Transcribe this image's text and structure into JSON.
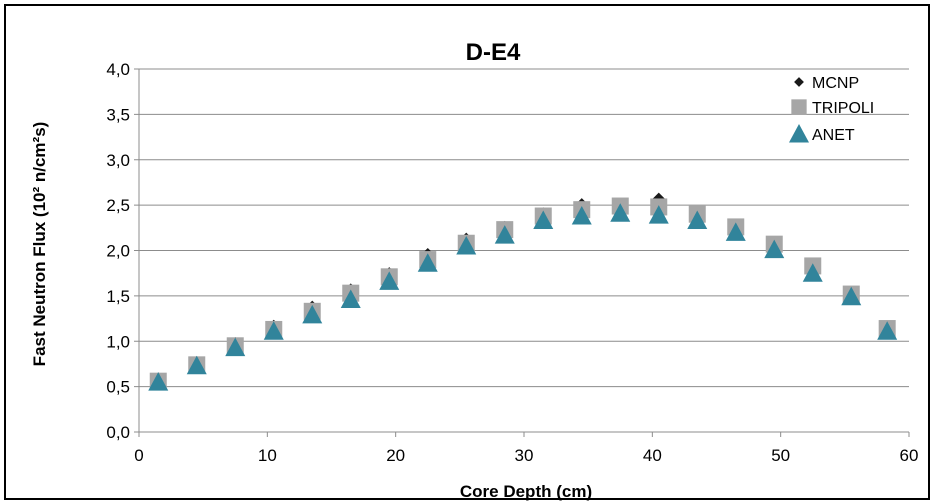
{
  "chart_data": {
    "type": "scatter",
    "title": "D-E4",
    "xlabel": "Core Depth (cm)",
    "ylabel": "Fast Neutron Flux (10² n/cm²s)",
    "xlim": [
      0,
      60
    ],
    "ylim": [
      0,
      4
    ],
    "x_ticks": [
      "0",
      "10",
      "20",
      "30",
      "40",
      "50",
      "60"
    ],
    "y_ticks": [
      "0,0",
      "0,5",
      "1,0",
      "1,5",
      "2,0",
      "2,5",
      "3,0",
      "3,5",
      "4,0"
    ],
    "grid": "horizontal",
    "legend_position": "top-right",
    "x": [
      1.5,
      4.5,
      7.5,
      10.5,
      13.5,
      16.5,
      19.5,
      22.5,
      25.5,
      28.5,
      31.5,
      34.5,
      37.5,
      40.5,
      43.5,
      46.5,
      49.5,
      52.5,
      55.5,
      58.3
    ],
    "series": [
      {
        "name": "MCNP",
        "marker": "diamond",
        "color": "#1a1a1a",
        "values": [
          0.58,
          0.76,
          0.97,
          1.16,
          1.37,
          1.56,
          1.74,
          1.95,
          2.12,
          2.25,
          2.4,
          2.5,
          2.5,
          2.56,
          2.4,
          2.24,
          2.07,
          1.82,
          1.51,
          1.15
        ]
      },
      {
        "name": "TRIPOLI",
        "marker": "square",
        "color": "#a6a6a6",
        "values": [
          0.56,
          0.74,
          0.95,
          1.13,
          1.33,
          1.53,
          1.71,
          1.9,
          2.08,
          2.23,
          2.38,
          2.45,
          2.49,
          2.48,
          2.4,
          2.26,
          2.07,
          1.83,
          1.52,
          1.14
        ]
      },
      {
        "name": "ANET",
        "marker": "triangle",
        "color": "#31849b",
        "values": [
          0.55,
          0.73,
          0.93,
          1.11,
          1.29,
          1.46,
          1.66,
          1.86,
          2.05,
          2.17,
          2.33,
          2.38,
          2.41,
          2.39,
          2.33,
          2.2,
          2.01,
          1.75,
          1.49,
          1.11
        ]
      }
    ]
  }
}
